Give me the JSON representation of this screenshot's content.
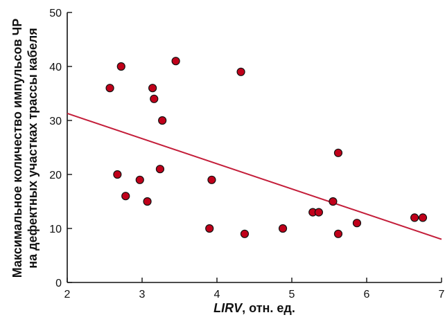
{
  "chart_data": {
    "type": "scatter",
    "xlabel_var": "LIRV",
    "xlabel_rest": ", отн. ед.",
    "ylabel_line1": "Максимальное количество импульсов ЧР",
    "ylabel_line2": "на дефектных участках трассы кабеля",
    "xlim": [
      2,
      7
    ],
    "ylim": [
      0,
      50
    ],
    "xticks": [
      2,
      3,
      4,
      5,
      6,
      7
    ],
    "yticks": [
      0,
      10,
      20,
      30,
      40,
      50
    ],
    "x_tick_labels": [
      "2",
      "3",
      "4",
      "5",
      "6",
      "7"
    ],
    "y_tick_labels": [
      "0",
      "10",
      "20",
      "30",
      "40",
      "50"
    ],
    "grid": false,
    "points": [
      {
        "x": 2.57,
        "y": 36
      },
      {
        "x": 2.67,
        "y": 20
      },
      {
        "x": 2.72,
        "y": 40
      },
      {
        "x": 2.78,
        "y": 16
      },
      {
        "x": 2.97,
        "y": 19
      },
      {
        "x": 3.07,
        "y": 15
      },
      {
        "x": 3.14,
        "y": 36
      },
      {
        "x": 3.16,
        "y": 34
      },
      {
        "x": 3.24,
        "y": 21
      },
      {
        "x": 3.27,
        "y": 30
      },
      {
        "x": 3.45,
        "y": 41
      },
      {
        "x": 3.9,
        "y": 10
      },
      {
        "x": 3.93,
        "y": 19
      },
      {
        "x": 4.32,
        "y": 39
      },
      {
        "x": 4.37,
        "y": 9
      },
      {
        "x": 4.88,
        "y": 10
      },
      {
        "x": 5.28,
        "y": 13
      },
      {
        "x": 5.36,
        "y": 13
      },
      {
        "x": 5.55,
        "y": 15
      },
      {
        "x": 5.62,
        "y": 9
      },
      {
        "x": 5.62,
        "y": 24
      },
      {
        "x": 5.87,
        "y": 11
      },
      {
        "x": 6.64,
        "y": 12
      },
      {
        "x": 6.75,
        "y": 12
      }
    ],
    "trend_line": {
      "x1": 2,
      "y1": 31.3,
      "x2": 7,
      "y2": 8.0
    },
    "colors": {
      "marker_fill": "#c0001a",
      "marker_edge": "#111111",
      "trend_line": "#c41e3a",
      "axis": "#111111"
    }
  }
}
